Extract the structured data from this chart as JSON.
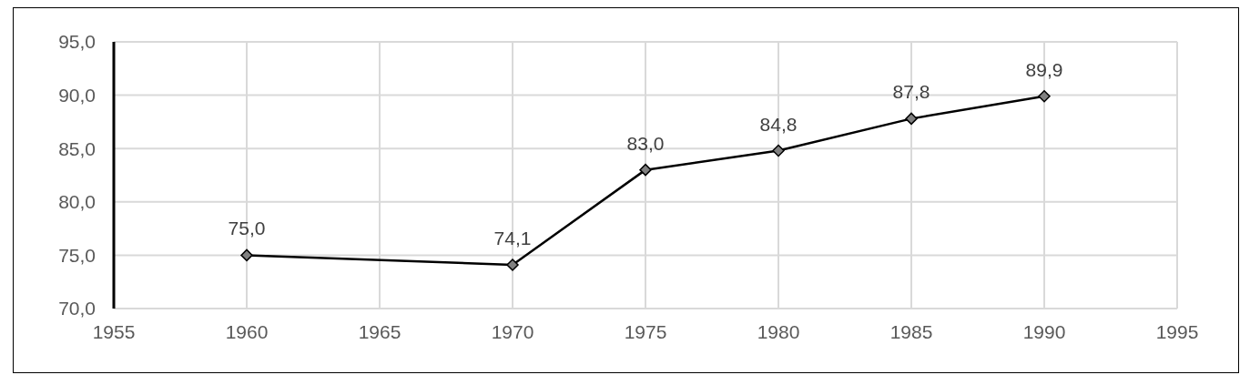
{
  "chart_data": {
    "type": "line",
    "x": [
      1960,
      1970,
      1975,
      1980,
      1985,
      1990
    ],
    "series": [
      {
        "color": "#000000",
        "values": [
          75.0,
          74.1,
          83.0,
          84.8,
          87.8,
          89.9
        ],
        "value_labels": [
          "75,0",
          "74,1",
          "83,0",
          "84,8",
          "87,8",
          "89,9"
        ]
      }
    ],
    "xlim": [
      1955,
      1995
    ],
    "xticks": [
      1955,
      1960,
      1965,
      1970,
      1975,
      1980,
      1985,
      1990,
      1995
    ],
    "ylim": [
      70,
      95
    ],
    "yticks": [
      {
        "value": 70,
        "label": "70,0"
      },
      {
        "value": 75,
        "label": "75,0"
      },
      {
        "value": 80,
        "label": "80,0"
      },
      {
        "value": 85,
        "label": "85,0"
      },
      {
        "value": 90,
        "label": "90,0"
      },
      {
        "value": 95,
        "label": "95,0"
      }
    ],
    "grid": true,
    "marker": "diamond",
    "line_style": "solid"
  }
}
